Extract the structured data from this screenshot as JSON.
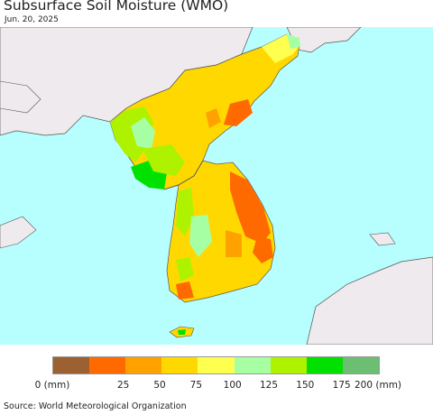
{
  "title": "Subsurface Soil Moisture (WMO)",
  "date": "Jun. 20, 2025",
  "legend": {
    "colors": [
      "#9c6131",
      "#ff6a00",
      "#ffa200",
      "#ffd800",
      "#ffff4f",
      "#a7ffa4",
      "#aef200",
      "#00e100",
      "#6cbe72"
    ],
    "ticks": [
      {
        "label": "0 (mm)"
      },
      {
        "label": "25"
      },
      {
        "label": "50"
      },
      {
        "label": "75"
      },
      {
        "label": "100"
      },
      {
        "label": "125"
      },
      {
        "label": "150"
      },
      {
        "label": "175"
      },
      {
        "label": "200 (mm)"
      }
    ]
  },
  "source": "Source: World Meteorological Organization",
  "colors": {
    "sea": "#b7feff",
    "land_other": "#eeeaed",
    "border": "#555555"
  }
}
